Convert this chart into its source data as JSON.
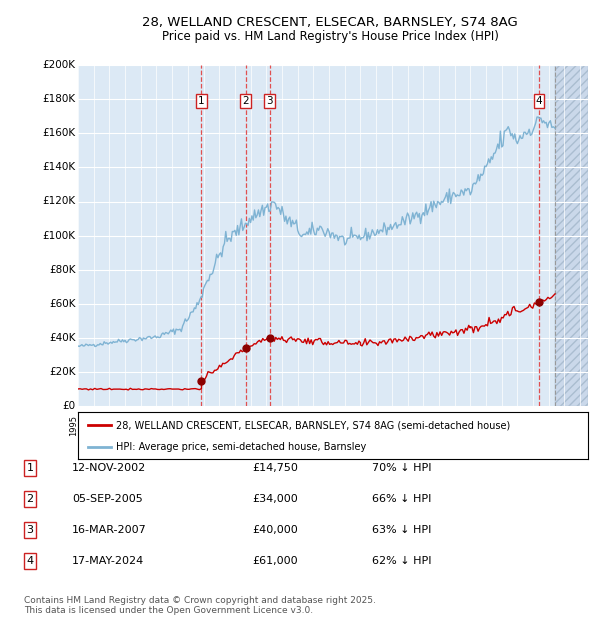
{
  "title_line1": "28, WELLAND CRESCENT, ELSECAR, BARNSLEY, S74 8AG",
  "title_line2": "Price paid vs. HM Land Registry's House Price Index (HPI)",
  "ylim": [
    0,
    200000
  ],
  "yticks": [
    0,
    20000,
    40000,
    60000,
    80000,
    100000,
    120000,
    140000,
    160000,
    180000,
    200000
  ],
  "ytick_labels": [
    "£0",
    "£20K",
    "£40K",
    "£60K",
    "£80K",
    "£100K",
    "£120K",
    "£140K",
    "£160K",
    "£180K",
    "£200K"
  ],
  "hpi_color": "#7fb3d3",
  "price_color": "#cc0000",
  "marker_color": "#8b0000",
  "vline_color": "#e05050",
  "dashed_vline_color": "#999999",
  "bg_color": "#dce9f5",
  "grid_color": "#ffffff",
  "transaction_dates": [
    2002.87,
    2005.68,
    2007.21,
    2024.38
  ],
  "transaction_prices": [
    14750,
    34000,
    40000,
    61000
  ],
  "transaction_labels": [
    "1",
    "2",
    "3",
    "4"
  ],
  "legend_line1": "28, WELLAND CRESCENT, ELSECAR, BARNSLEY, S74 8AG (semi-detached house)",
  "legend_line2": "HPI: Average price, semi-detached house, Barnsley",
  "table_entries": [
    {
      "num": "1",
      "date": "12-NOV-2002",
      "price": "£14,750",
      "pct": "70% ↓ HPI"
    },
    {
      "num": "2",
      "date": "05-SEP-2005",
      "price": "£34,000",
      "pct": "66% ↓ HPI"
    },
    {
      "num": "3",
      "date": "16-MAR-2007",
      "price": "£40,000",
      "pct": "63% ↓ HPI"
    },
    {
      "num": "4",
      "date": "17-MAY-2024",
      "price": "£61,000",
      "pct": "62% ↓ HPI"
    }
  ],
  "footnote1": "Contains HM Land Registry data © Crown copyright and database right 2025.",
  "footnote2": "This data is licensed under the Open Government Licence v3.0.",
  "xmin": 1995.0,
  "xmax": 2027.5,
  "future_start": 2025.4
}
